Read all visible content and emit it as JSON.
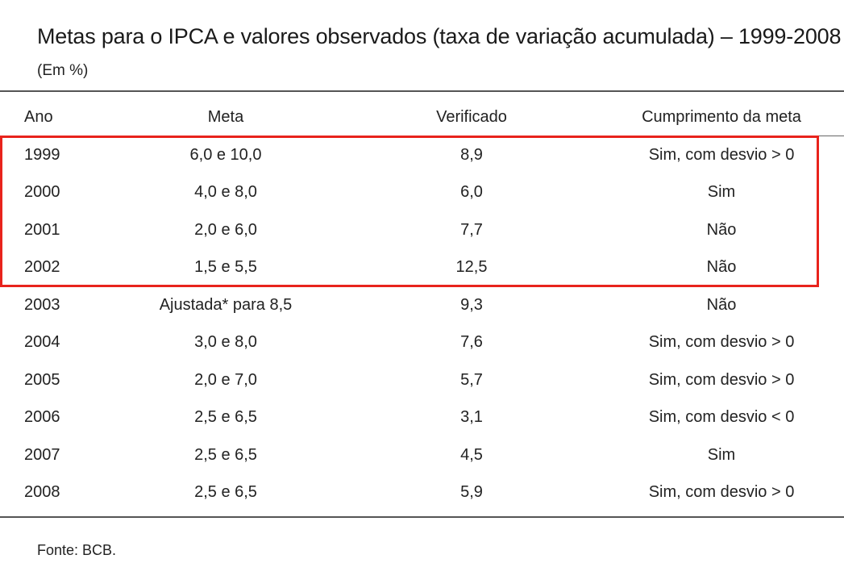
{
  "title": "Metas para o IPCA e valores observados (taxa de variação acumulada) – 1999-2008",
  "subtitle": "(Em %)",
  "columns": {
    "ano": "Ano",
    "meta": "Meta",
    "verificado": "Verificado",
    "cumprimento": "Cumprimento da meta"
  },
  "rows": [
    {
      "ano": "1999",
      "meta": "6,0 e 10,0",
      "verificado": "8,9",
      "cumprimento": "Sim, com desvio > 0"
    },
    {
      "ano": "2000",
      "meta": "4,0 e 8,0",
      "verificado": "6,0",
      "cumprimento": "Sim"
    },
    {
      "ano": "2001",
      "meta": "2,0 e 6,0",
      "verificado": "7,7",
      "cumprimento": "Não"
    },
    {
      "ano": "2002",
      "meta": "1,5 e 5,5",
      "verificado": "12,5",
      "cumprimento": "Não"
    },
    {
      "ano": "2003",
      "meta": "Ajustada* para 8,5",
      "verificado": "9,3",
      "cumprimento": "Não"
    },
    {
      "ano": "2004",
      "meta": "3,0 e 8,0",
      "verificado": "7,6",
      "cumprimento": "Sim, com desvio > 0"
    },
    {
      "ano": "2005",
      "meta": "2,0 e 7,0",
      "verificado": "5,7",
      "cumprimento": "Sim, com desvio > 0"
    },
    {
      "ano": "2006",
      "meta": "2,5 e 6,5",
      "verificado": "3,1",
      "cumprimento": "Sim, com desvio < 0"
    },
    {
      "ano": "2007",
      "meta": "2,5 e 6,5",
      "verificado": "4,5",
      "cumprimento": "Sim"
    },
    {
      "ano": "2008",
      "meta": "2,5 e 6,5",
      "verificado": "5,9",
      "cumprimento": "Sim, com desvio > 0"
    }
  ],
  "highlight": {
    "color": "#e8231c",
    "rows": [
      "1999",
      "2000",
      "2001",
      "2002"
    ]
  },
  "source": "Fonte: BCB."
}
